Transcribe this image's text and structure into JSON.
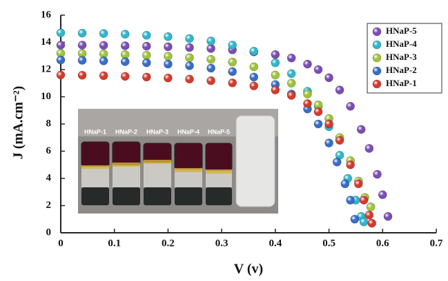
{
  "chart_data": {
    "type": "scatter",
    "x_label": "V (v)",
    "y_label": "J (mA.cm⁻²)",
    "xlim": [
      0,
      0.7
    ],
    "ylim": [
      0,
      16
    ],
    "xticks": [
      0,
      0.1,
      0.2,
      0.3,
      0.4,
      0.5,
      0.6,
      0.7
    ],
    "yticks": [
      0,
      2,
      4,
      6,
      8,
      10,
      12,
      14,
      16
    ],
    "legend": "top-right",
    "series": [
      {
        "name": "HNaP-5",
        "color": "#7a4cb4",
        "x": [
          0,
          0.04,
          0.08,
          0.12,
          0.16,
          0.2,
          0.24,
          0.28,
          0.32,
          0.36,
          0.4,
          0.43,
          0.46,
          0.48,
          0.5,
          0.52,
          0.54,
          0.56,
          0.575,
          0.59,
          0.6,
          0.61
        ],
        "values": [
          13.8,
          13.8,
          13.78,
          13.75,
          13.72,
          13.68,
          13.62,
          13.55,
          13.45,
          13.3,
          13.1,
          12.85,
          12.4,
          12.0,
          11.4,
          10.5,
          9.3,
          7.6,
          6.2,
          4.3,
          2.8,
          1.2
        ]
      },
      {
        "name": "HNaP-4",
        "color": "#2fb6cc",
        "x": [
          0,
          0.04,
          0.08,
          0.12,
          0.16,
          0.2,
          0.24,
          0.28,
          0.32,
          0.36,
          0.4,
          0.43,
          0.46,
          0.48,
          0.5,
          0.52,
          0.535,
          0.55,
          0.56,
          0.565
        ],
        "values": [
          14.7,
          14.68,
          14.65,
          14.6,
          14.52,
          14.42,
          14.28,
          14.1,
          13.8,
          13.35,
          12.5,
          11.7,
          10.4,
          9.3,
          7.8,
          5.7,
          4.0,
          2.4,
          1.2,
          0.8
        ]
      },
      {
        "name": "HNaP-3",
        "color": "#9ec43a",
        "x": [
          0,
          0.04,
          0.08,
          0.12,
          0.16,
          0.2,
          0.24,
          0.28,
          0.32,
          0.36,
          0.4,
          0.43,
          0.46,
          0.48,
          0.5,
          0.52,
          0.54,
          0.555,
          0.567,
          0.578
        ],
        "values": [
          13.2,
          13.18,
          13.15,
          13.1,
          13.05,
          12.98,
          12.88,
          12.75,
          12.55,
          12.2,
          11.6,
          11.0,
          10.2,
          9.4,
          8.4,
          7.0,
          5.3,
          3.8,
          2.6,
          1.9
        ]
      },
      {
        "name": "HNaP-2",
        "color": "#356dc8",
        "x": [
          0,
          0.04,
          0.08,
          0.12,
          0.16,
          0.2,
          0.24,
          0.28,
          0.32,
          0.36,
          0.4,
          0.43,
          0.46,
          0.48,
          0.5,
          0.515,
          0.53,
          0.54,
          0.548
        ],
        "values": [
          12.7,
          12.68,
          12.64,
          12.58,
          12.5,
          12.4,
          12.28,
          12.1,
          11.85,
          11.45,
          10.9,
          10.2,
          9.1,
          8.0,
          6.6,
          5.2,
          3.6,
          2.4,
          1.0
        ]
      },
      {
        "name": "HNaP-1",
        "color": "#d43a2c",
        "x": [
          0,
          0.04,
          0.08,
          0.12,
          0.16,
          0.2,
          0.24,
          0.28,
          0.32,
          0.36,
          0.4,
          0.43,
          0.46,
          0.48,
          0.5,
          0.52,
          0.54,
          0.555,
          0.565,
          0.575,
          0.58
        ],
        "values": [
          11.6,
          11.58,
          11.55,
          11.5,
          11.45,
          11.38,
          11.3,
          11.18,
          11.02,
          10.8,
          10.5,
          10.1,
          9.5,
          8.9,
          8.0,
          6.8,
          5.0,
          3.6,
          2.4,
          1.3,
          0.7
        ]
      }
    ],
    "inset": {
      "labels": [
        "HNaP-1",
        "HNaP-2",
        "HNaP-3",
        "HNaP-4",
        "HNaP-5"
      ]
    }
  }
}
